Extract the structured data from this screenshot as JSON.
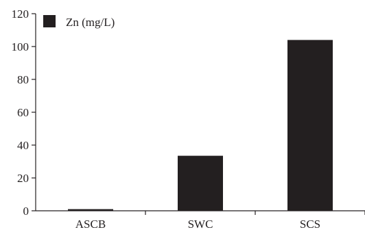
{
  "colors": {
    "bar": "#231f20",
    "axis": "#231f20",
    "background": "#ffffff"
  },
  "legend": {
    "label": "Zn (mg/L)"
  },
  "chart_data": {
    "type": "bar",
    "title": "",
    "xlabel": "",
    "ylabel": "",
    "categories": [
      "ASCB",
      "SWC",
      "SCS"
    ],
    "series": [
      {
        "name": "Zn (mg/L)",
        "values": [
          1,
          33.5,
          104
        ]
      }
    ],
    "ylim": [
      0,
      120
    ],
    "yticks": [
      0,
      20,
      40,
      60,
      80,
      100,
      120
    ],
    "grid": false,
    "legend_position": "top-left"
  }
}
